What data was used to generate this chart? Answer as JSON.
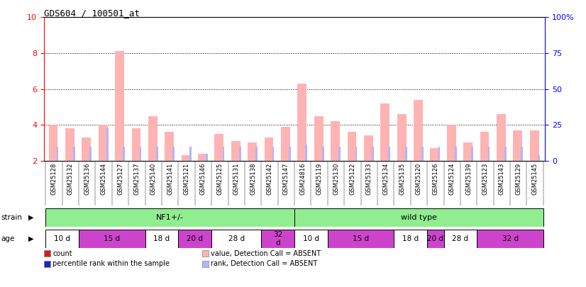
{
  "title": "GDS604 / 100501_at",
  "samples": [
    "GSM25128",
    "GSM25132",
    "GSM25136",
    "GSM25144",
    "GSM25127",
    "GSM25137",
    "GSM25140",
    "GSM25141",
    "GSM25121",
    "GSM25146",
    "GSM25125",
    "GSM25131",
    "GSM25138",
    "GSM25142",
    "GSM25147",
    "GSM24816",
    "GSM25119",
    "GSM25130",
    "GSM25122",
    "GSM25133",
    "GSM25134",
    "GSM25135",
    "GSM25120",
    "GSM25126",
    "GSM25124",
    "GSM25139",
    "GSM25123",
    "GSM25143",
    "GSM25129",
    "GSM25145"
  ],
  "count_values": [
    4.0,
    3.8,
    3.3,
    4.0,
    8.1,
    3.8,
    4.5,
    3.6,
    2.3,
    2.4,
    3.5,
    3.1,
    3.0,
    3.3,
    3.9,
    6.3,
    4.5,
    4.2,
    3.6,
    3.4,
    5.2,
    4.6,
    5.4,
    2.7,
    4.0,
    3.0,
    3.6,
    4.6,
    3.7,
    3.7
  ],
  "rank_values": [
    2.8,
    2.8,
    2.8,
    3.8,
    2.8,
    2.8,
    2.8,
    2.8,
    2.8,
    2.4,
    2.8,
    2.8,
    2.8,
    2.8,
    2.8,
    2.9,
    2.8,
    2.8,
    2.8,
    2.8,
    2.8,
    2.8,
    2.8,
    2.8,
    2.8,
    2.8,
    2.8,
    2.8,
    2.8,
    2.3
  ],
  "absent_flags": [
    true,
    true,
    true,
    true,
    true,
    true,
    true,
    true,
    true,
    true,
    true,
    true,
    true,
    true,
    true,
    true,
    true,
    true,
    true,
    true,
    true,
    true,
    true,
    true,
    true,
    true,
    true,
    true,
    true,
    true
  ],
  "strain_groups": [
    {
      "label": "NF1+/-",
      "start": 0,
      "end": 14,
      "color": "#90ee90"
    },
    {
      "label": "wild type",
      "start": 15,
      "end": 29,
      "color": "#90ee90"
    }
  ],
  "age_groups": [
    {
      "label": "10 d",
      "start": 0,
      "end": 1,
      "color": "#ffffff"
    },
    {
      "label": "15 d",
      "start": 2,
      "end": 5,
      "color": "#cc44cc"
    },
    {
      "label": "18 d",
      "start": 6,
      "end": 7,
      "color": "#ffffff"
    },
    {
      "label": "20 d",
      "start": 8,
      "end": 9,
      "color": "#cc44cc"
    },
    {
      "label": "28 d",
      "start": 10,
      "end": 12,
      "color": "#ffffff"
    },
    {
      "label": "32\nd",
      "start": 13,
      "end": 14,
      "color": "#cc44cc"
    },
    {
      "label": "10 d",
      "start": 15,
      "end": 16,
      "color": "#ffffff"
    },
    {
      "label": "15 d",
      "start": 17,
      "end": 20,
      "color": "#cc44cc"
    },
    {
      "label": "18 d",
      "start": 21,
      "end": 22,
      "color": "#ffffff"
    },
    {
      "label": "20 d",
      "start": 23,
      "end": 23,
      "color": "#cc44cc"
    },
    {
      "label": "28 d",
      "start": 24,
      "end": 25,
      "color": "#ffffff"
    },
    {
      "label": "32 d",
      "start": 26,
      "end": 29,
      "color": "#cc44cc"
    }
  ],
  "ylim_left": [
    2,
    10
  ],
  "ylim_right": [
    0,
    100
  ],
  "yticks_left": [
    2,
    4,
    6,
    8,
    10
  ],
  "yticks_right": [
    0,
    25,
    50,
    75,
    100
  ],
  "ytick_labels_right": [
    "0",
    "25",
    "50",
    "75",
    "100%"
  ],
  "count_color_absent": "#ffb3b3",
  "rank_color_absent": "#b3b3ff",
  "count_color": "#cc2222",
  "rank_color": "#2222cc",
  "legend_items": [
    {
      "label": "count",
      "color": "#cc2222"
    },
    {
      "label": "percentile rank within the sample",
      "color": "#2222cc"
    },
    {
      "label": "value, Detection Call = ABSENT",
      "color": "#ffb3b3"
    },
    {
      "label": "rank, Detection Call = ABSENT",
      "color": "#b3b3ff"
    }
  ]
}
